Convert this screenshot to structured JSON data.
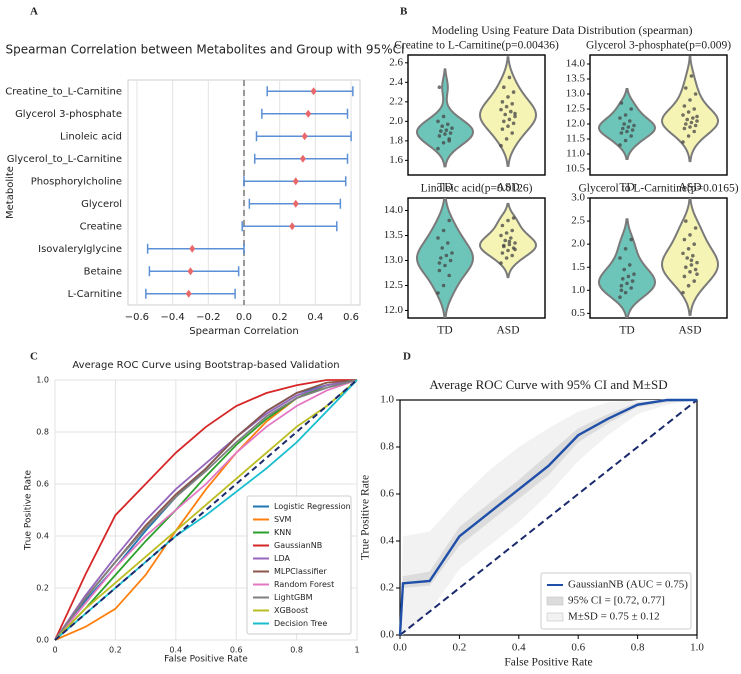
{
  "chart_data": [
    {
      "type": "forest",
      "panel": "A",
      "title": "Spearman Correlation between Metabolites and Group with 95%CI",
      "x_label": "Spearman Correlation",
      "y_label": "Metabolite",
      "categories": [
        "Creatine_to_L-Carnitine",
        "Glycerol 3-phosphate",
        "Linoleic acid",
        "Glycerol_to_L-Carnitine",
        "Phosphorylcholine",
        "Glycerol",
        "Creatine",
        "Isovalerylglycine",
        "Betaine",
        "L-Carnitine"
      ],
      "values": [
        0.39,
        0.36,
        0.34,
        0.33,
        0.29,
        0.29,
        0.27,
        -0.29,
        -0.3,
        -0.31
      ],
      "ci_low": [
        0.13,
        0.1,
        0.07,
        0.06,
        0.0,
        0.03,
        -0.01,
        -0.54,
        -0.53,
        -0.55
      ],
      "ci_high": [
        0.61,
        0.58,
        0.6,
        0.58,
        0.57,
        0.54,
        0.52,
        0.0,
        -0.03,
        -0.05
      ],
      "point_color": "#e8696b",
      "bar_color": "#5b8fd6",
      "vline": 0,
      "xlim": [
        -0.65,
        0.65
      ],
      "xticks": [
        {
          "value": -0.6,
          "label": "−0.6"
        },
        {
          "value": -0.4,
          "label": "−0.4"
        },
        {
          "value": -0.2,
          "label": "−0.2"
        },
        {
          "value": 0,
          "label": "0.0"
        },
        0.2,
        0.4,
        0.6
      ],
      "grid": true
    },
    {
      "type": "violin",
      "panel": "B",
      "title": "Modeling Using Feature Data Distribution (spearman)",
      "categories": [
        "TD",
        "ASD"
      ],
      "colors": [
        "#6dc5b9",
        "#f6f4b5"
      ],
      "subplots": [
        {
          "title": "Creatine to L-Carnitine(p=0.00436)",
          "values": [
            [
              1.72,
              1.78,
              1.82,
              1.85,
              1.87,
              1.88,
              1.9,
              1.91,
              1.93,
              1.95,
              1.97,
              2.0,
              2.05,
              1.8,
              2.35
            ],
            [
              1.75,
              1.82,
              1.88,
              1.92,
              1.95,
              1.98,
              2.0,
              2.02,
              2.05,
              2.07,
              2.1,
              2.12,
              2.15,
              2.18,
              2.2,
              2.25,
              2.3,
              2.35,
              2.45,
              2.08
            ]
          ],
          "ylim": [
            1.45,
            2.68
          ],
          "yticks": [
            1.6,
            1.8,
            {
              "value": 2,
              "label": "2.0"
            },
            2.2,
            2.4,
            2.6
          ]
        },
        {
          "title": "Glycerol 3-phosphate(p=0.009)",
          "values": [
            [
              11.3,
              11.45,
              11.6,
              11.7,
              11.75,
              11.8,
              11.85,
              11.9,
              11.95,
              12.0,
              12.1,
              12.2,
              12.3,
              12.5,
              12.7
            ],
            [
              11.4,
              11.6,
              11.75,
              11.85,
              11.9,
              11.95,
              12.0,
              12.05,
              12.1,
              12.15,
              12.2,
              12.3,
              12.4,
              12.5,
              12.6,
              12.8,
              13.0,
              13.2,
              13.6,
              12.25
            ]
          ],
          "ylim": [
            10.3,
            14.3
          ],
          "yticks": [
            10.5,
            {
              "value": 11,
              "label": "11.0"
            },
            11.5,
            {
              "value": 12,
              "label": "12.0"
            },
            12.5,
            {
              "value": 13,
              "label": "13.0"
            },
            13.5,
            {
              "value": 14,
              "label": "14.0"
            }
          ]
        },
        {
          "title": "Linoleic acid(p=0.0126)",
          "values": [
            [
              12.35,
              12.5,
              12.7,
              12.8,
              12.9,
              13.0,
              13.05,
              13.1,
              13.15,
              13.25,
              13.35,
              13.45,
              13.6,
              13.8,
              12.95
            ],
            [
              12.95,
              13.05,
              13.1,
              13.15,
              13.2,
              13.25,
              13.3,
              13.32,
              13.35,
              13.4,
              13.45,
              13.5,
              13.55,
              13.6,
              13.7,
              13.8,
              13.85,
              13.28,
              13.38,
              13.22
            ]
          ],
          "ylim": [
            11.85,
            14.25
          ],
          "yticks": [
            {
              "value": 12,
              "label": "12.0"
            },
            12.5,
            {
              "value": 13,
              "label": "13.0"
            },
            13.5,
            {
              "value": 14,
              "label": "14.0"
            }
          ]
        },
        {
          "title": "Glycerol to L-Carnitine(p=0.0165)",
          "values": [
            [
              0.85,
              0.95,
              1.05,
              1.1,
              1.15,
              1.2,
              1.25,
              1.3,
              1.35,
              1.45,
              1.55,
              1.7,
              1.9,
              2.1,
              1.0
            ],
            [
              0.95,
              1.1,
              1.2,
              1.3,
              1.4,
              1.45,
              1.5,
              1.55,
              1.6,
              1.7,
              1.75,
              1.8,
              1.9,
              2.0,
              2.1,
              2.2,
              2.35,
              2.5,
              1.65,
              1.35
            ]
          ],
          "ylim": [
            0.4,
            3.0
          ],
          "yticks": [
            0.5,
            {
              "value": 1,
              "label": "1.0"
            },
            1.5,
            {
              "value": 2,
              "label": "2.0"
            },
            2.5,
            {
              "value": 3,
              "label": "3.0"
            }
          ]
        }
      ]
    },
    {
      "type": "line",
      "panel": "C",
      "title": "Average ROC Curve using Bootstrap-based Validation",
      "x_label": "False Positive Rate",
      "y_label": "True Positive Rate",
      "x": [
        0,
        0.1,
        0.2,
        0.3,
        0.4,
        0.5,
        0.6,
        0.7,
        0.8,
        0.9,
        1
      ],
      "series": [
        {
          "name": "Logistic Regression",
          "color": "#1f77b4",
          "values": [
            0,
            0.15,
            0.28,
            0.42,
            0.55,
            0.66,
            0.78,
            0.88,
            0.95,
            0.98,
            1
          ]
        },
        {
          "name": "SVM",
          "color": "#ff7f0e",
          "values": [
            0,
            0.05,
            0.12,
            0.25,
            0.42,
            0.58,
            0.72,
            0.84,
            0.93,
            0.98,
            1
          ]
        },
        {
          "name": "KNN",
          "color": "#2ca02c",
          "values": [
            0,
            0.12,
            0.25,
            0.38,
            0.5,
            0.63,
            0.75,
            0.85,
            0.93,
            0.98,
            1
          ]
        },
        {
          "name": "GaussianNB",
          "color": "#d62728",
          "values": [
            0,
            0.25,
            0.48,
            0.6,
            0.72,
            0.82,
            0.9,
            0.95,
            0.98,
            1,
            1
          ]
        },
        {
          "name": "LDA",
          "color": "#9467bd",
          "values": [
            0,
            0.17,
            0.32,
            0.46,
            0.58,
            0.68,
            0.78,
            0.87,
            0.94,
            0.98,
            1
          ]
        },
        {
          "name": "MLPClassifier",
          "color": "#8c564b",
          "values": [
            0,
            0.16,
            0.3,
            0.44,
            0.56,
            0.66,
            0.78,
            0.88,
            0.95,
            0.99,
            1
          ]
        },
        {
          "name": "Random Forest",
          "color": "#e377c2",
          "values": [
            0,
            0.14,
            0.28,
            0.4,
            0.5,
            0.6,
            0.72,
            0.82,
            0.9,
            0.96,
            1
          ]
        },
        {
          "name": "LightGBM",
          "color": "#7f7f7f",
          "values": [
            0,
            0.16,
            0.3,
            0.43,
            0.55,
            0.65,
            0.76,
            0.86,
            0.93,
            0.97,
            1
          ]
        },
        {
          "name": "XGBoost",
          "color": "#bcbd22",
          "values": [
            0,
            0.12,
            0.22,
            0.32,
            0.42,
            0.52,
            0.62,
            0.72,
            0.82,
            0.9,
            1
          ]
        },
        {
          "name": "Decision Tree",
          "color": "#17becf",
          "values": [
            0,
            0.1,
            0.2,
            0.3,
            0.4,
            0.48,
            0.57,
            0.66,
            0.76,
            0.88,
            1
          ]
        }
      ],
      "diagonal": true,
      "diagonal_color": "#1a2a6c",
      "xlim": [
        0,
        1
      ],
      "ylim": [
        0,
        1
      ],
      "xticks": [
        0,
        0.2,
        0.4,
        0.6,
        0.8,
        1
      ],
      "yticks": [
        {
          "value": 0,
          "label": "0.0"
        },
        0.2,
        0.4,
        0.6,
        0.8,
        {
          "value": 1,
          "label": "1.0"
        }
      ],
      "grid": true,
      "legend": "lower right"
    },
    {
      "type": "roc_band",
      "panel": "D",
      "title": "Average ROC Curve with 95% CI and M±SD",
      "x_label": "False Positive Rate",
      "y_label": "True Positive Rate",
      "x": [
        0,
        0.01,
        0.1,
        0.2,
        0.3,
        0.4,
        0.5,
        0.6,
        0.7,
        0.8,
        0.9,
        1
      ],
      "series": [
        {
          "name": "GaussianNB (AUC = 0.75)",
          "color": "#1f4fa8",
          "values": [
            0,
            0.22,
            0.23,
            0.42,
            0.52,
            0.62,
            0.72,
            0.85,
            0.92,
            0.98,
            1,
            1
          ]
        }
      ],
      "bands": [
        {
          "name": "M±SD = 0.75 ± 0.12",
          "color": "#f2f2f2",
          "lower": [
            0,
            0,
            0.1,
            0.28,
            0.38,
            0.48,
            0.6,
            0.74,
            0.85,
            0.94,
            0.98,
            1
          ],
          "upper": [
            0,
            0.42,
            0.44,
            0.58,
            0.7,
            0.8,
            0.88,
            0.95,
            0.99,
            1,
            1,
            1
          ]
        },
        {
          "name": "95% CI = [0.72, 0.77]",
          "color": "#dcdcdc",
          "lower": [
            0,
            0.2,
            0.21,
            0.38,
            0.48,
            0.58,
            0.68,
            0.82,
            0.9,
            0.97,
            0.99,
            1
          ],
          "upper": [
            0,
            0.25,
            0.27,
            0.46,
            0.56,
            0.66,
            0.77,
            0.88,
            0.94,
            0.99,
            1,
            1
          ]
        }
      ],
      "diagonal": true,
      "diagonal_color": "#1a2a6c",
      "xlim": [
        0,
        1
      ],
      "ylim": [
        0,
        1
      ],
      "xticks": [
        {
          "value": 0,
          "label": "0.0"
        },
        0.2,
        0.4,
        0.6,
        0.8,
        {
          "value": 1,
          "label": "1.0"
        }
      ],
      "yticks": [
        {
          "value": 0,
          "label": "0.0"
        },
        0.2,
        0.4,
        0.6,
        0.8,
        {
          "value": 1,
          "label": "1.0"
        }
      ],
      "legend": "lower right"
    }
  ]
}
